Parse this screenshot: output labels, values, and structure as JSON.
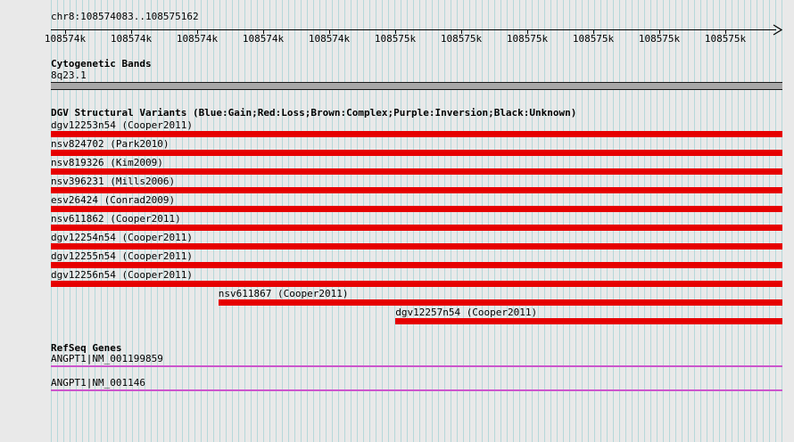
{
  "header": {
    "region": "chr8:108574083..108575162"
  },
  "ruler": {
    "ticks": [
      "108574k",
      "108574k",
      "108574k",
      "108574k",
      "108574k",
      "108575k",
      "108575k",
      "108575k",
      "108575k",
      "108575k",
      "108575k"
    ]
  },
  "tracks": {
    "cytogenetic": {
      "title": "Cytogenetic Bands",
      "band_label": "8q23.1"
    },
    "dgv": {
      "title": "DGV Structural Variants (Blue:Gain;Red:Loss;Brown:Complex;Purple:Inversion;Black:Unknown)",
      "variants": [
        {
          "label": "dgv12253n54 (Cooper2011)",
          "start_pct": 0
        },
        {
          "label": "nsv824702 (Park2010)",
          "start_pct": 0
        },
        {
          "label": "nsv819326 (Kim2009)",
          "start_pct": 0
        },
        {
          "label": "nsv396231 (Mills2006)",
          "start_pct": 0
        },
        {
          "label": "esv26424 (Conrad2009)",
          "start_pct": 0
        },
        {
          "label": "nsv611862 (Cooper2011)",
          "start_pct": 0
        },
        {
          "label": "dgv12254n54 (Cooper2011)",
          "start_pct": 0
        },
        {
          "label": "dgv12255n54 (Cooper2011)",
          "start_pct": 0
        },
        {
          "label": "dgv12256n54 (Cooper2011)",
          "start_pct": 0
        },
        {
          "label": "nsv611867 (Cooper2011)",
          "start_pct": 22.9
        },
        {
          "label": "dgv12257n54 (Cooper2011)",
          "start_pct": 47.1
        }
      ]
    },
    "refseq": {
      "title": "RefSeq Genes",
      "genes": [
        {
          "label": "ANGPT1|NM_001199859"
        },
        {
          "label": "ANGPT1|NM_001146"
        }
      ]
    }
  },
  "colors": {
    "variant_loss": "#e60000",
    "gene_line": "#cc55cc",
    "band_fill": "#a8a8a8",
    "grid_line": "#b6d8da",
    "background": "#e9e9e9"
  }
}
